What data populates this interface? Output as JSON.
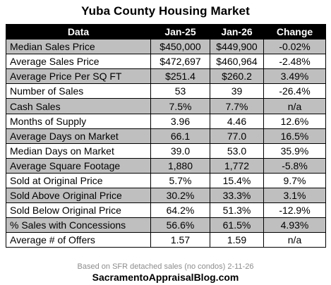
{
  "title": "Yuba County Housing Market",
  "columns": [
    "Data",
    "Jan-25",
    "Jan-26",
    "Change"
  ],
  "rows": [
    [
      "Median Sales Price",
      "$450,000",
      "$449,900",
      "-0.02%"
    ],
    [
      "Average Sales Price",
      "$472,697",
      "$460,964",
      "-2.48%"
    ],
    [
      "Average Price Per SQ FT",
      "$251.4",
      "$260.2",
      "3.49%"
    ],
    [
      "Number of Sales",
      "53",
      "39",
      "-26.4%"
    ],
    [
      "Cash Sales",
      "7.5%",
      "7.7%",
      "n/a"
    ],
    [
      "Months of Supply",
      "3.96",
      "4.46",
      "12.6%"
    ],
    [
      "Average Days on Market",
      "66.1",
      "77.0",
      "16.5%"
    ],
    [
      "Median Days on Market",
      "39.0",
      "53.0",
      "35.9%"
    ],
    [
      "Average Square Footage",
      "1,880",
      "1,772",
      "-5.8%"
    ],
    [
      "Sold at Original Price",
      "5.7%",
      "15.4%",
      "9.7%"
    ],
    [
      "Sold Above Original Price",
      "30.2%",
      "33.3%",
      "3.1%"
    ],
    [
      "Sold Below Original Price",
      "64.2%",
      "51.3%",
      "-12.9%"
    ],
    [
      "% Sales with Concessions",
      "56.6%",
      "61.5%",
      "4.93%"
    ],
    [
      "Average # of Offers",
      "1.57",
      "1.59",
      "n/a"
    ]
  ],
  "footnote": "Based on SFR detached sales (no condos) 2-11-26",
  "brand": "SacramentoAppraisalBlog.com",
  "colors": {
    "header_bg": "#000000",
    "header_text": "#ffffff",
    "shaded_row": "#bfbfbf",
    "plain_row": "#ffffff"
  }
}
